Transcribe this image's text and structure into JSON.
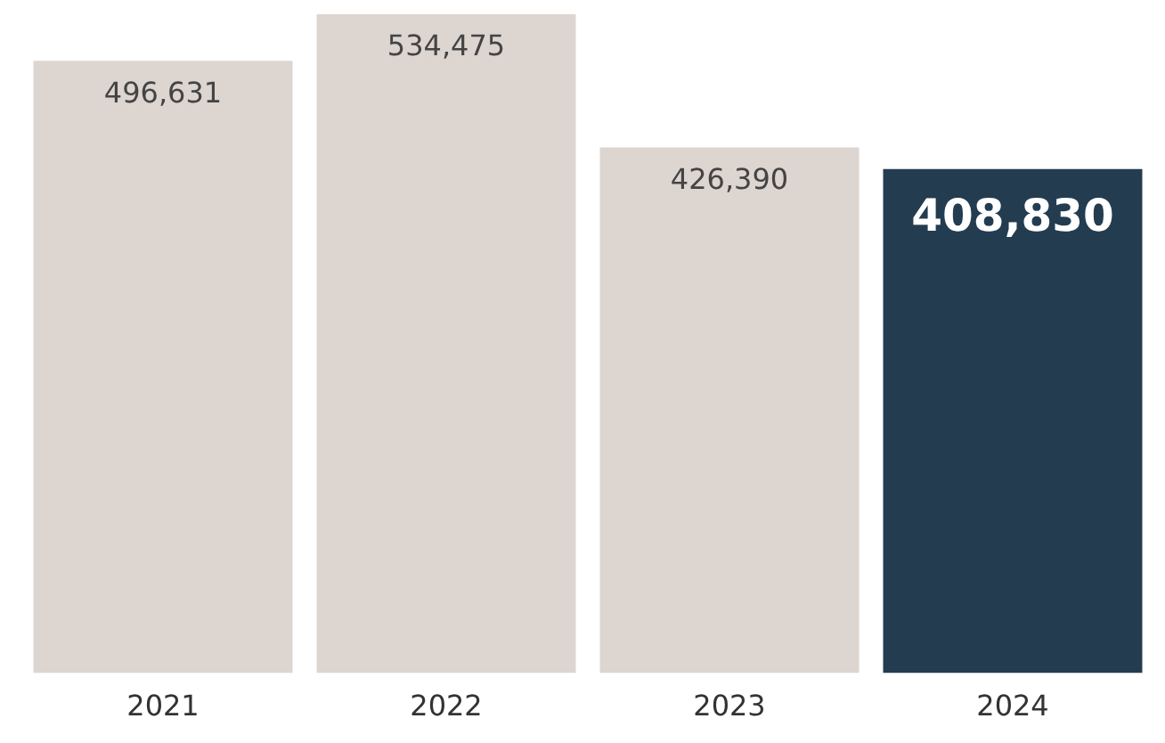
{
  "chart_data": {
    "type": "bar",
    "categories": [
      "2021",
      "2022",
      "2023",
      "2024"
    ],
    "values": [
      496631,
      534475,
      426390,
      408830
    ],
    "colors": [
      "#ddd5d0",
      "#ddd5d0",
      "#ddd5d0",
      "#233c50"
    ],
    "value_labels": [
      "496,631",
      "534,475",
      "426,390",
      "408,830"
    ],
    "relative": false,
    "grid": false,
    "legend": false
  }
}
